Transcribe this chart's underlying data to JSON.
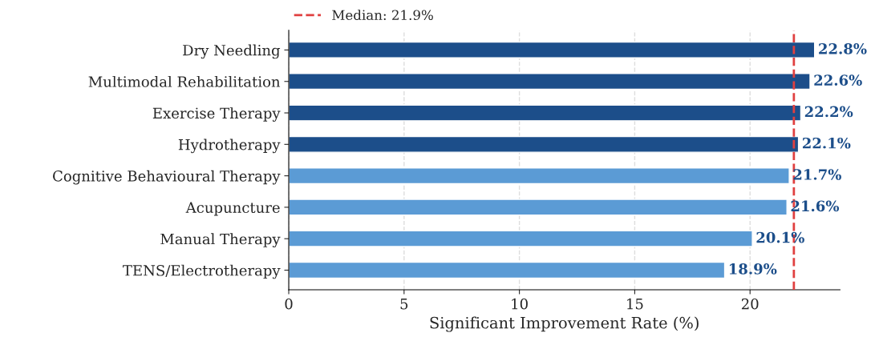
{
  "chart_data": {
    "type": "bar",
    "orientation": "horizontal",
    "categories": [
      "Dry Needling",
      "Multimodal Rehabilitation",
      "Exercise Therapy",
      "Hydrotherapy",
      "Cognitive Behavioural Therapy",
      "Acupuncture",
      "Manual Therapy",
      "TENS/Electrotherapy"
    ],
    "values": [
      22.8,
      22.6,
      22.2,
      22.1,
      21.7,
      21.6,
      20.1,
      18.9
    ],
    "colors": [
      "#1c4e8a",
      "#1c4e8a",
      "#1c4e8a",
      "#1c4e8a",
      "#5b9bd5",
      "#5b9bd5",
      "#5b9bd5",
      "#5b9bd5"
    ],
    "value_labels": [
      "22.8%",
      "22.6%",
      "22.2%",
      "22.1%",
      "21.7%",
      "21.6%",
      "20.1%",
      "18.9%"
    ],
    "xlabel": "Significant Improvement Rate (%)",
    "xlim": [
      0,
      23.9
    ],
    "xticks": [
      0,
      5,
      10,
      15,
      20
    ],
    "ref_lines": [
      {
        "axis": "x",
        "value": 21.9,
        "label": "Median: 21.9%",
        "color": "#e04040",
        "line_style": "dashed"
      }
    ],
    "grid": "x",
    "legend": "top left"
  }
}
